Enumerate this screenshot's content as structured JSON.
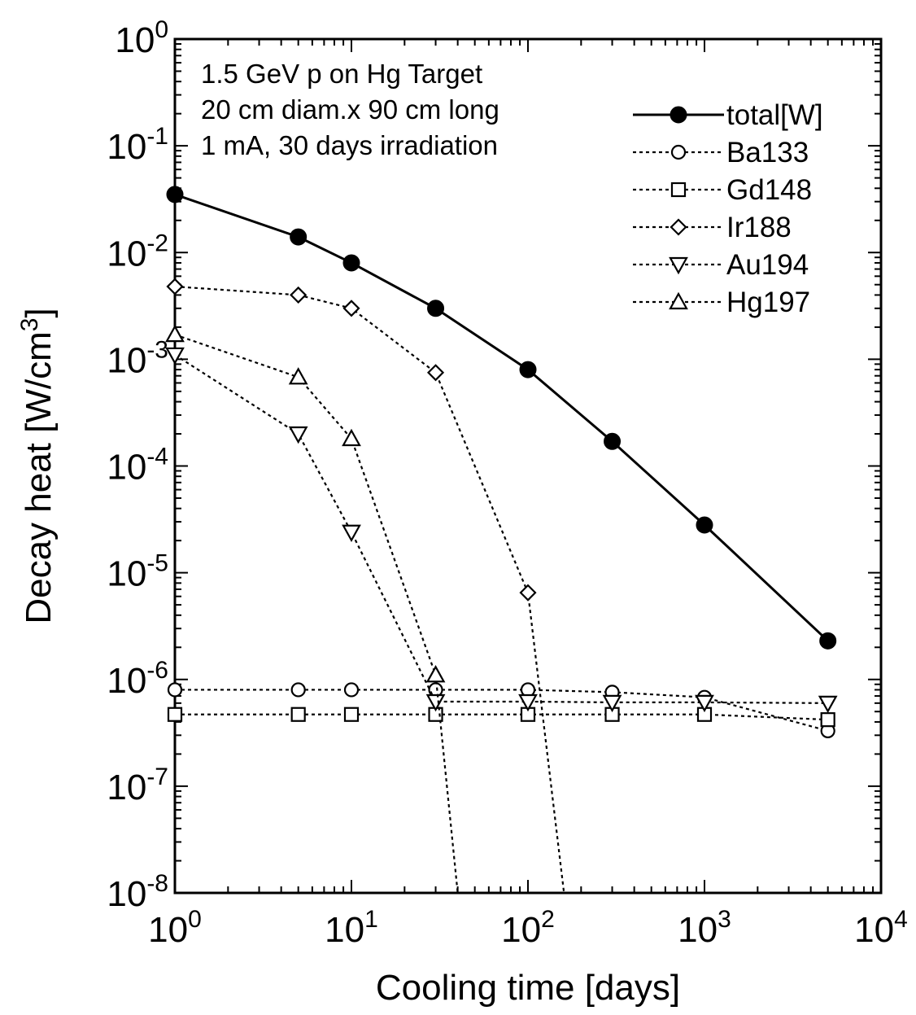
{
  "chart_data": {
    "type": "line",
    "xlabel": "Cooling time [days]",
    "ylabel_main": "Decay heat [W/cm",
    "ylabel_sup": "3",
    "ylabel_close": "]",
    "xscale": "log",
    "yscale": "log",
    "xlim": [
      1,
      10000
    ],
    "ylim": [
      1e-08,
      1
    ],
    "grid": false,
    "legend_position": "top-right",
    "annotation": [
      "1.5 GeV p on Hg Target",
      "20 cm diam.x 90 cm long",
      "1 mA, 30 days irradiation"
    ],
    "x_ticks": [
      {
        "value": 1,
        "base": "10",
        "exp": "0"
      },
      {
        "value": 10,
        "base": "10",
        "exp": "1"
      },
      {
        "value": 100,
        "base": "10",
        "exp": "2"
      },
      {
        "value": 1000,
        "base": "10",
        "exp": "3"
      },
      {
        "value": 10000,
        "base": "10",
        "exp": "4"
      }
    ],
    "y_ticks": [
      {
        "value": 1,
        "base": "10",
        "exp": "0"
      },
      {
        "value": 0.1,
        "base": "10",
        "exp": "-1"
      },
      {
        "value": 0.01,
        "base": "10",
        "exp": "-2"
      },
      {
        "value": 0.001,
        "base": "10",
        "exp": "-3"
      },
      {
        "value": 0.0001,
        "base": "10",
        "exp": "-4"
      },
      {
        "value": 1e-05,
        "base": "10",
        "exp": "-5"
      },
      {
        "value": 1e-06,
        "base": "10",
        "exp": "-6"
      },
      {
        "value": 1e-07,
        "base": "10",
        "exp": "-7"
      },
      {
        "value": 1e-08,
        "base": "10",
        "exp": "-8"
      }
    ],
    "series": [
      {
        "name": "total[W]",
        "marker": "filled-circle",
        "line": "solid",
        "x": [
          1,
          5,
          10,
          30,
          100,
          300,
          1000,
          5000
        ],
        "y": [
          0.035,
          0.014,
          0.008,
          0.003,
          0.0008,
          0.00017,
          2.8e-05,
          2.3e-06
        ]
      },
      {
        "name": "Ba133",
        "marker": "open-circle",
        "line": "dotted",
        "x": [
          1,
          5,
          10,
          30,
          100,
          300,
          1000,
          5000
        ],
        "y": [
          8e-07,
          8e-07,
          8e-07,
          8e-07,
          8e-07,
          7.6e-07,
          6.8e-07,
          3.3e-07
        ]
      },
      {
        "name": "Gd148",
        "marker": "open-square",
        "line": "dotted",
        "x": [
          1,
          5,
          10,
          30,
          100,
          300,
          1000,
          5000
        ],
        "y": [
          4.7e-07,
          4.7e-07,
          4.7e-07,
          4.7e-07,
          4.7e-07,
          4.7e-07,
          4.7e-07,
          4.2e-07
        ]
      },
      {
        "name": "Ir188",
        "marker": "open-diamond",
        "line": "dotted",
        "x": [
          1,
          5,
          10,
          30,
          100,
          160
        ],
        "y": [
          0.0048,
          0.004,
          0.003,
          0.00075,
          6.5e-06,
          1e-08
        ]
      },
      {
        "name": "Au194",
        "marker": "open-triangle-down",
        "line": "dotted",
        "x": [
          1,
          5,
          10,
          30,
          100,
          300,
          1000,
          5000
        ],
        "y": [
          0.0011,
          0.0002,
          2.4e-05,
          6.2e-07,
          6.2e-07,
          6.1e-07,
          6.1e-07,
          6e-07
        ]
      },
      {
        "name": "Hg197",
        "marker": "open-triangle-up",
        "line": "dotted",
        "x": [
          1,
          5,
          10,
          30,
          40
        ],
        "y": [
          0.0017,
          0.00068,
          0.00018,
          1.1e-06,
          1e-08
        ]
      }
    ]
  }
}
